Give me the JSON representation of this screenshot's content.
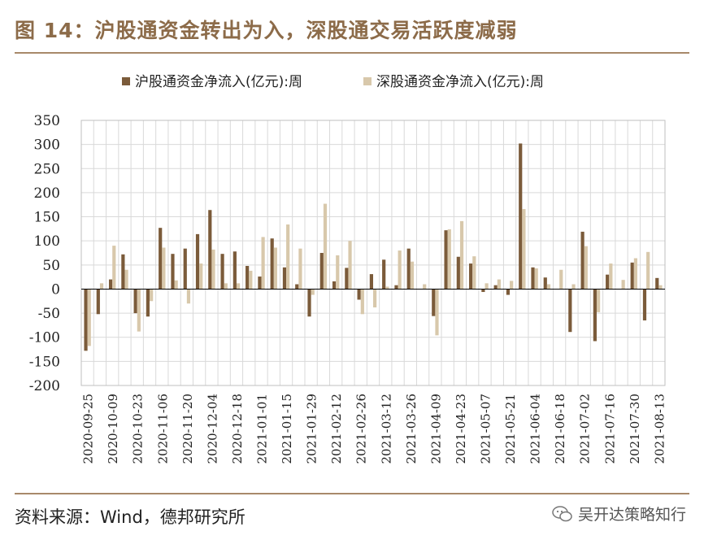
{
  "title": "图 14：沪股通资金转出为入，深股通交易活跃度减弱",
  "source": "资料来源：Wind，德邦研究所",
  "watermark": "吴开达策略知行",
  "chart_data": {
    "type": "bar",
    "legend_position": "top",
    "grid": true,
    "ylim": [
      -200,
      350
    ],
    "yticks": [
      350,
      300,
      250,
      200,
      150,
      100,
      50,
      0,
      -50,
      -100,
      -150,
      -200
    ],
    "tick_labels": [
      "2020-09-25",
      "2020-10-09",
      "2020-10-23",
      "2020-11-06",
      "2020-11-20",
      "2020-12-04",
      "2020-12-18",
      "2021-01-01",
      "2021-01-15",
      "2021-01-29",
      "2021-02-12",
      "2021-02-26",
      "2021-03-12",
      "2021-03-26",
      "2021-04-09",
      "2021-04-23",
      "2021-05-07",
      "2021-05-21",
      "2021-06-04",
      "2021-06-18",
      "2021-07-02",
      "2021-07-16",
      "2021-07-30",
      "2021-08-13"
    ],
    "categories": [
      "2020-09-25",
      "2020-10-02",
      "2020-10-09",
      "2020-10-16",
      "2020-10-23",
      "2020-10-30",
      "2020-11-06",
      "2020-11-13",
      "2020-11-20",
      "2020-11-27",
      "2020-12-04",
      "2020-12-11",
      "2020-12-18",
      "2020-12-25",
      "2021-01-01",
      "2021-01-08",
      "2021-01-15",
      "2021-01-22",
      "2021-01-29",
      "2021-02-05",
      "2021-02-12",
      "2021-02-19",
      "2021-02-26",
      "2021-03-05",
      "2021-03-12",
      "2021-03-19",
      "2021-03-26",
      "2021-04-02",
      "2021-04-09",
      "2021-04-16",
      "2021-04-23",
      "2021-04-30",
      "2021-05-07",
      "2021-05-14",
      "2021-05-21",
      "2021-05-28",
      "2021-06-04",
      "2021-06-11",
      "2021-06-18",
      "2021-06-25",
      "2021-07-02",
      "2021-07-09",
      "2021-07-16",
      "2021-07-23",
      "2021-07-30",
      "2021-08-06",
      "2021-08-13"
    ],
    "series": [
      {
        "name": "沪股通资金净流入(亿元):周",
        "color": "#7b5b3a",
        "values": [
          -128,
          -52,
          20,
          72,
          -50,
          -57,
          127,
          73,
          84,
          114,
          164,
          73,
          78,
          48,
          26,
          105,
          45,
          10,
          -57,
          75,
          16,
          44,
          -22,
          31,
          61,
          8,
          84,
          0,
          -56,
          122,
          67,
          53,
          -6,
          8,
          -12,
          302,
          45,
          24,
          0,
          -89,
          119,
          -108,
          30,
          0,
          55,
          -65,
          23
        ]
      },
      {
        "name": "深股通资金净流入(亿元):周",
        "color": "#d8c8ab",
        "values": [
          -118,
          12,
          90,
          40,
          -88,
          -25,
          86,
          18,
          -30,
          53,
          82,
          12,
          12,
          38,
          108,
          86,
          134,
          84,
          -12,
          177,
          70,
          100,
          -52,
          -38,
          5,
          80,
          57,
          10,
          -96,
          124,
          141,
          68,
          12,
          20,
          17,
          166,
          43,
          10,
          40,
          10,
          89,
          -48,
          53,
          19,
          64,
          77,
          8
        ]
      }
    ]
  }
}
